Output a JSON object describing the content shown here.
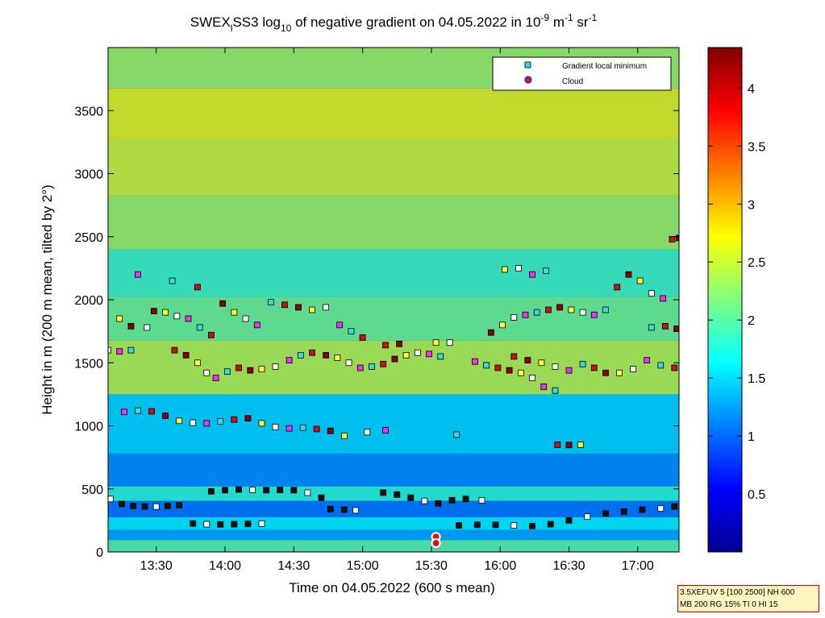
{
  "chart_data": {
    "type": "heatmap",
    "title": {
      "part1": "SWEX",
      "sub1": "l",
      "part2": "SS3 log",
      "sub2": "10",
      "part3": " of negative gradient on 04.05.2022 in 10",
      "sup1": "-9",
      "part4": " m",
      "sup2": "-1",
      "part5": " sr",
      "sup3": "-1"
    },
    "xlabel": "Time on 04.05.2022 (600 s mean)",
    "ylabel": "Height in m (200 m mean, tilted by 2°)",
    "x_ticks": [
      "13:30",
      "14:00",
      "14:30",
      "15:00",
      "15:30",
      "16:00",
      "16:30",
      "17:00"
    ],
    "x_tick_minutes": [
      810,
      840,
      870,
      900,
      930,
      960,
      990,
      1020
    ],
    "xlim_minutes": [
      789,
      1038
    ],
    "y_ticks": [
      0,
      500,
      1000,
      1500,
      2000,
      2500,
      3000,
      3500
    ],
    "ylim": [
      0,
      4000
    ],
    "colorbar": {
      "ticks": [
        0.5,
        1,
        1.5,
        2,
        2.5,
        3,
        3.5,
        4
      ],
      "tick_labels": [
        "0.5",
        "1",
        "1.5",
        "2",
        "2.5",
        "3",
        "3.5",
        "4"
      ],
      "range": [
        0,
        4.35
      ],
      "colormap": "jet"
    },
    "legend": {
      "placement": "top-right",
      "entries": [
        {
          "label": "Gradient local minimum",
          "marker": "square",
          "color": "#33dddd"
        },
        {
          "label": "Cloud",
          "marker": "circle",
          "color": "#dd1111"
        }
      ]
    },
    "layers": [
      {
        "from_minute": 789,
        "to_minute": 1038,
        "height": 60,
        "value": 2.0
      },
      {
        "from_minute": 789,
        "to_minute": 1038,
        "height": 130,
        "value": 1.3
      },
      {
        "from_minute": 789,
        "to_minute": 1038,
        "height": 220,
        "value": 1.6
      },
      {
        "from_minute": 789,
        "to_minute": 1038,
        "height": 330,
        "value": 1.1
      },
      {
        "from_minute": 789,
        "to_minute": 1038,
        "height": 480,
        "value": 1.8
      },
      {
        "from_minute": 789,
        "to_minute": 1038,
        "height": 560,
        "value": 1.2
      },
      {
        "from_minute": 789,
        "to_minute": 1038,
        "height": 1000,
        "value": 1.5
      },
      {
        "from_minute": 789,
        "to_minute": 1038,
        "height": 1500,
        "value": 2.4
      },
      {
        "from_minute": 789,
        "to_minute": 1038,
        "height": 1850,
        "value": 2.1
      },
      {
        "from_minute": 789,
        "to_minute": 1038,
        "height": 2200,
        "value": 1.9
      },
      {
        "from_minute": 789,
        "to_minute": 1038,
        "height": 2600,
        "value": 2.3
      },
      {
        "from_minute": 789,
        "to_minute": 1038,
        "height": 3050,
        "value": 2.5
      },
      {
        "from_minute": 789,
        "to_minute": 1038,
        "height": 3500,
        "value": 2.6
      },
      {
        "from_minute": 789,
        "to_minute": 1038,
        "height": 3850,
        "value": 2.3
      }
    ],
    "series": [
      {
        "name": "Gradient local minimum",
        "points": [
          {
            "x": 790,
            "y": 420
          },
          {
            "x": 795,
            "y": 380
          },
          {
            "x": 800,
            "y": 365
          },
          {
            "x": 805,
            "y": 360
          },
          {
            "x": 810,
            "y": 360
          },
          {
            "x": 815,
            "y": 365
          },
          {
            "x": 820,
            "y": 370
          },
          {
            "x": 826,
            "y": 225
          },
          {
            "x": 832,
            "y": 220
          },
          {
            "x": 838,
            "y": 218
          },
          {
            "x": 844,
            "y": 220
          },
          {
            "x": 850,
            "y": 222
          },
          {
            "x": 856,
            "y": 225
          },
          {
            "x": 834,
            "y": 480
          },
          {
            "x": 840,
            "y": 490
          },
          {
            "x": 846,
            "y": 495
          },
          {
            "x": 852,
            "y": 492
          },
          {
            "x": 858,
            "y": 490
          },
          {
            "x": 864,
            "y": 492
          },
          {
            "x": 870,
            "y": 490
          },
          {
            "x": 876,
            "y": 470
          },
          {
            "x": 882,
            "y": 430
          },
          {
            "x": 886,
            "y": 340
          },
          {
            "x": 892,
            "y": 335
          },
          {
            "x": 897,
            "y": 330
          },
          {
            "x": 909,
            "y": 470
          },
          {
            "x": 915,
            "y": 455
          },
          {
            "x": 921,
            "y": 430
          },
          {
            "x": 927,
            "y": 405
          },
          {
            "x": 933,
            "y": 385
          },
          {
            "x": 939,
            "y": 410
          },
          {
            "x": 945,
            "y": 420
          },
          {
            "x": 952,
            "y": 410
          },
          {
            "x": 942,
            "y": 210
          },
          {
            "x": 950,
            "y": 215
          },
          {
            "x": 958,
            "y": 215
          },
          {
            "x": 966,
            "y": 210
          },
          {
            "x": 974,
            "y": 205
          },
          {
            "x": 982,
            "y": 220
          },
          {
            "x": 990,
            "y": 250
          },
          {
            "x": 998,
            "y": 280
          },
          {
            "x": 1006,
            "y": 305
          },
          {
            "x": 1014,
            "y": 320
          },
          {
            "x": 1022,
            "y": 335
          },
          {
            "x": 1030,
            "y": 345
          },
          {
            "x": 1036,
            "y": 360
          },
          {
            "x": 796,
            "y": 1110
          },
          {
            "x": 802,
            "y": 1120
          },
          {
            "x": 808,
            "y": 1115
          },
          {
            "x": 814,
            "y": 1080
          },
          {
            "x": 820,
            "y": 1040
          },
          {
            "x": 826,
            "y": 1025
          },
          {
            "x": 832,
            "y": 1020
          },
          {
            "x": 838,
            "y": 1035
          },
          {
            "x": 844,
            "y": 1050
          },
          {
            "x": 850,
            "y": 1060
          },
          {
            "x": 856,
            "y": 1020
          },
          {
            "x": 862,
            "y": 990
          },
          {
            "x": 868,
            "y": 980
          },
          {
            "x": 874,
            "y": 985
          },
          {
            "x": 880,
            "y": 975
          },
          {
            "x": 886,
            "y": 960
          },
          {
            "x": 892,
            "y": 920
          },
          {
            "x": 902,
            "y": 950
          },
          {
            "x": 910,
            "y": 965
          },
          {
            "x": 941,
            "y": 930
          },
          {
            "x": 985,
            "y": 850
          },
          {
            "x": 990,
            "y": 848
          },
          {
            "x": 995,
            "y": 850
          },
          {
            "x": 789,
            "y": 1600
          },
          {
            "x": 794,
            "y": 1590
          },
          {
            "x": 799,
            "y": 1600
          },
          {
            "x": 818,
            "y": 1600
          },
          {
            "x": 823,
            "y": 1560
          },
          {
            "x": 828,
            "y": 1500
          },
          {
            "x": 832,
            "y": 1420
          },
          {
            "x": 836,
            "y": 1380
          },
          {
            "x": 841,
            "y": 1430
          },
          {
            "x": 846,
            "y": 1460
          },
          {
            "x": 851,
            "y": 1440
          },
          {
            "x": 856,
            "y": 1450
          },
          {
            "x": 862,
            "y": 1470
          },
          {
            "x": 868,
            "y": 1520
          },
          {
            "x": 873,
            "y": 1560
          },
          {
            "x": 878,
            "y": 1580
          },
          {
            "x": 884,
            "y": 1560
          },
          {
            "x": 889,
            "y": 1540
          },
          {
            "x": 894,
            "y": 1500
          },
          {
            "x": 899,
            "y": 1460
          },
          {
            "x": 904,
            "y": 1470
          },
          {
            "x": 909,
            "y": 1490
          },
          {
            "x": 914,
            "y": 1530
          },
          {
            "x": 919,
            "y": 1560
          },
          {
            "x": 924,
            "y": 1580
          },
          {
            "x": 929,
            "y": 1570
          },
          {
            "x": 934,
            "y": 1550
          },
          {
            "x": 910,
            "y": 1640
          },
          {
            "x": 916,
            "y": 1650
          },
          {
            "x": 932,
            "y": 1660
          },
          {
            "x": 938,
            "y": 1660
          },
          {
            "x": 949,
            "y": 1510
          },
          {
            "x": 954,
            "y": 1480
          },
          {
            "x": 959,
            "y": 1460
          },
          {
            "x": 964,
            "y": 1440
          },
          {
            "x": 969,
            "y": 1420
          },
          {
            "x": 974,
            "y": 1380
          },
          {
            "x": 979,
            "y": 1310
          },
          {
            "x": 984,
            "y": 1280
          },
          {
            "x": 966,
            "y": 1550
          },
          {
            "x": 972,
            "y": 1520
          },
          {
            "x": 978,
            "y": 1500
          },
          {
            "x": 984,
            "y": 1470
          },
          {
            "x": 990,
            "y": 1440
          },
          {
            "x": 996,
            "y": 1490
          },
          {
            "x": 1001,
            "y": 1460
          },
          {
            "x": 1006,
            "y": 1420
          },
          {
            "x": 1012,
            "y": 1420
          },
          {
            "x": 1018,
            "y": 1450
          },
          {
            "x": 1024,
            "y": 1520
          },
          {
            "x": 1030,
            "y": 1480
          },
          {
            "x": 1036,
            "y": 1460
          },
          {
            "x": 809,
            "y": 1910
          },
          {
            "x": 814,
            "y": 1900
          },
          {
            "x": 819,
            "y": 1870
          },
          {
            "x": 824,
            "y": 1850
          },
          {
            "x": 829,
            "y": 1780
          },
          {
            "x": 834,
            "y": 1720
          },
          {
            "x": 839,
            "y": 1970
          },
          {
            "x": 844,
            "y": 1900
          },
          {
            "x": 849,
            "y": 1850
          },
          {
            "x": 854,
            "y": 1800
          },
          {
            "x": 860,
            "y": 1980
          },
          {
            "x": 866,
            "y": 1960
          },
          {
            "x": 872,
            "y": 1940
          },
          {
            "x": 878,
            "y": 1920
          },
          {
            "x": 884,
            "y": 1940
          },
          {
            "x": 890,
            "y": 1800
          },
          {
            "x": 895,
            "y": 1750
          },
          {
            "x": 900,
            "y": 1700
          },
          {
            "x": 799,
            "y": 1790
          },
          {
            "x": 794,
            "y": 1850
          },
          {
            "x": 806,
            "y": 1780
          },
          {
            "x": 802,
            "y": 2200
          },
          {
            "x": 817,
            "y": 2150
          },
          {
            "x": 828,
            "y": 2100
          },
          {
            "x": 956,
            "y": 1740
          },
          {
            "x": 961,
            "y": 1800
          },
          {
            "x": 966,
            "y": 1860
          },
          {
            "x": 971,
            "y": 1880
          },
          {
            "x": 976,
            "y": 1900
          },
          {
            "x": 981,
            "y": 1920
          },
          {
            "x": 986,
            "y": 1940
          },
          {
            "x": 991,
            "y": 1920
          },
          {
            "x": 996,
            "y": 1900
          },
          {
            "x": 1001,
            "y": 1880
          },
          {
            "x": 1006,
            "y": 1920
          },
          {
            "x": 1011,
            "y": 2100
          },
          {
            "x": 1016,
            "y": 2200
          },
          {
            "x": 1021,
            "y": 2150
          },
          {
            "x": 1026,
            "y": 2050
          },
          {
            "x": 1031,
            "y": 2010
          },
          {
            "x": 1026,
            "y": 1780
          },
          {
            "x": 1032,
            "y": 1790
          },
          {
            "x": 1037,
            "y": 1770
          },
          {
            "x": 962,
            "y": 2240
          },
          {
            "x": 968,
            "y": 2250
          },
          {
            "x": 974,
            "y": 2200
          },
          {
            "x": 980,
            "y": 2230
          },
          {
            "x": 1035,
            "y": 2480
          },
          {
            "x": 1038,
            "y": 2490
          }
        ]
      },
      {
        "name": "Cloud",
        "points": [
          {
            "x": 932,
            "y": 120
          },
          {
            "x": 932,
            "y": 70
          }
        ]
      }
    ]
  },
  "params": {
    "line1": "3.5XEFUV 5 [100 2500] NH 600",
    "line2": "MB 200 RG 15% TI 0 HI 15"
  }
}
